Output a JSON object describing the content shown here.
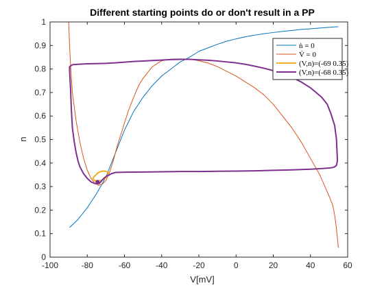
{
  "chart_data": {
    "type": "line",
    "title": "Different starting points do or don't result in a PP",
    "xlabel": "V[mV]",
    "ylabel": "n",
    "xlim": [
      -100,
      60
    ],
    "ylim": [
      0,
      1
    ],
    "xticks": [
      -100,
      -80,
      -60,
      -40,
      -20,
      0,
      20,
      40,
      60
    ],
    "yticks": [
      0,
      0.1,
      0.2,
      0.3,
      0.4,
      0.5,
      0.6,
      0.7,
      0.8,
      0.9,
      1
    ],
    "grid": false,
    "legend_position": "top-right",
    "colors": {
      "n_nullcline": "#0072BD",
      "v_nullcline": "#D95319",
      "traj_69": "#EDB120",
      "traj_68": "#7E2F8E"
    },
    "series": [
      {
        "name": "ṅ = 0",
        "color": "#0072BD",
        "x": [
          -89.5,
          -85,
          -80,
          -75,
          -70,
          -65,
          -60,
          -55,
          -50,
          -45,
          -40,
          -35,
          -30,
          -25,
          -20,
          -15,
          -10,
          -5,
          0,
          5,
          10,
          15,
          20,
          25,
          30,
          35,
          40,
          45,
          50,
          55
        ],
        "y": [
          0.126,
          0.16,
          0.21,
          0.27,
          0.34,
          0.44,
          0.54,
          0.62,
          0.68,
          0.73,
          0.77,
          0.8,
          0.83,
          0.85,
          0.875,
          0.89,
          0.905,
          0.918,
          0.928,
          0.937,
          0.944,
          0.95,
          0.955,
          0.96,
          0.964,
          0.968,
          0.971,
          0.974,
          0.977,
          0.98
        ]
      },
      {
        "name": "V̇ = 0",
        "color": "#D95319",
        "x": [
          -90,
          -89.5,
          -89,
          -88,
          -86,
          -84,
          -82,
          -80,
          -78,
          -76,
          -74,
          -72,
          -70,
          -68,
          -66,
          -64,
          -62,
          -60,
          -58,
          -56,
          -54,
          -52,
          -50,
          -48,
          -45,
          -40,
          -35,
          -30,
          -25,
          -20,
          -15,
          -10,
          -5,
          0,
          5,
          10,
          15,
          20,
          25,
          30,
          35,
          40,
          45,
          50,
          52,
          53,
          54,
          54.5,
          55
        ],
        "y": [
          1.0,
          0.9,
          0.82,
          0.7,
          0.58,
          0.49,
          0.42,
          0.37,
          0.335,
          0.315,
          0.305,
          0.31,
          0.325,
          0.36,
          0.41,
          0.47,
          0.52,
          0.57,
          0.62,
          0.66,
          0.7,
          0.735,
          0.76,
          0.78,
          0.81,
          0.835,
          0.842,
          0.843,
          0.842,
          0.835,
          0.825,
          0.81,
          0.79,
          0.77,
          0.745,
          0.72,
          0.69,
          0.65,
          0.6,
          0.55,
          0.49,
          0.42,
          0.35,
          0.26,
          0.22,
          0.18,
          0.12,
          0.08,
          0.04
        ]
      },
      {
        "name": "(V,n)=(-69 0.35)",
        "color": "#EDB120",
        "x": [
          -69,
          -68.5,
          -70,
          -72,
          -74,
          -76,
          -77,
          -76,
          -74,
          -72,
          -70,
          -68.5
        ],
        "y": [
          0.35,
          0.36,
          0.365,
          0.366,
          0.36,
          0.345,
          0.335,
          0.325,
          0.323,
          0.328,
          0.338,
          0.35
        ]
      },
      {
        "name": "(V,n)=(-68 0.35)",
        "color": "#7E2F8E",
        "x": [
          -68,
          -67,
          -65,
          -60,
          -50,
          -40,
          -30,
          -20,
          -10,
          0,
          10,
          20,
          30,
          40,
          45,
          50,
          52,
          53,
          54,
          54.5,
          54,
          53,
          51,
          49,
          46,
          43,
          40,
          35,
          30,
          25,
          20,
          15,
          10,
          5,
          0,
          -5,
          -10,
          -15,
          -20,
          -25,
          -30,
          -35,
          -40,
          -45,
          -50,
          -55,
          -60,
          -65,
          -70,
          -75,
          -80,
          -85,
          -88,
          -89.5,
          -89.5,
          -89,
          -88.5,
          -88,
          -87,
          -86,
          -85,
          -84,
          -82,
          -80,
          -78,
          -76,
          -74.5,
          -73.5,
          -73,
          -72,
          -71,
          -69.5,
          -68
        ],
        "y": [
          0.35,
          0.355,
          0.36,
          0.361,
          0.362,
          0.363,
          0.364,
          0.364,
          0.365,
          0.366,
          0.367,
          0.369,
          0.371,
          0.374,
          0.376,
          0.379,
          0.381,
          0.384,
          0.39,
          0.41,
          0.5,
          0.56,
          0.61,
          0.65,
          0.68,
          0.7,
          0.72,
          0.745,
          0.765,
          0.78,
          0.793,
          0.803,
          0.812,
          0.82,
          0.826,
          0.83,
          0.834,
          0.837,
          0.839,
          0.841,
          0.841,
          0.84,
          0.838,
          0.836,
          0.834,
          0.832,
          0.829,
          0.826,
          0.824,
          0.823,
          0.822,
          0.82,
          0.818,
          0.81,
          0.79,
          0.72,
          0.62,
          0.55,
          0.49,
          0.445,
          0.41,
          0.385,
          0.355,
          0.335,
          0.32,
          0.313,
          0.312,
          0.313,
          0.318,
          0.327,
          0.336,
          0.345,
          0.35
        ]
      }
    ],
    "start_point": {
      "x": -74.5,
      "y": 0.32,
      "color": "#7E2F8E"
    },
    "legend_entries": [
      "ṅ = 0",
      "V̇ = 0",
      "(V,n)=(-69 0.35)",
      "(V,n)=(-68 0.35)"
    ]
  }
}
